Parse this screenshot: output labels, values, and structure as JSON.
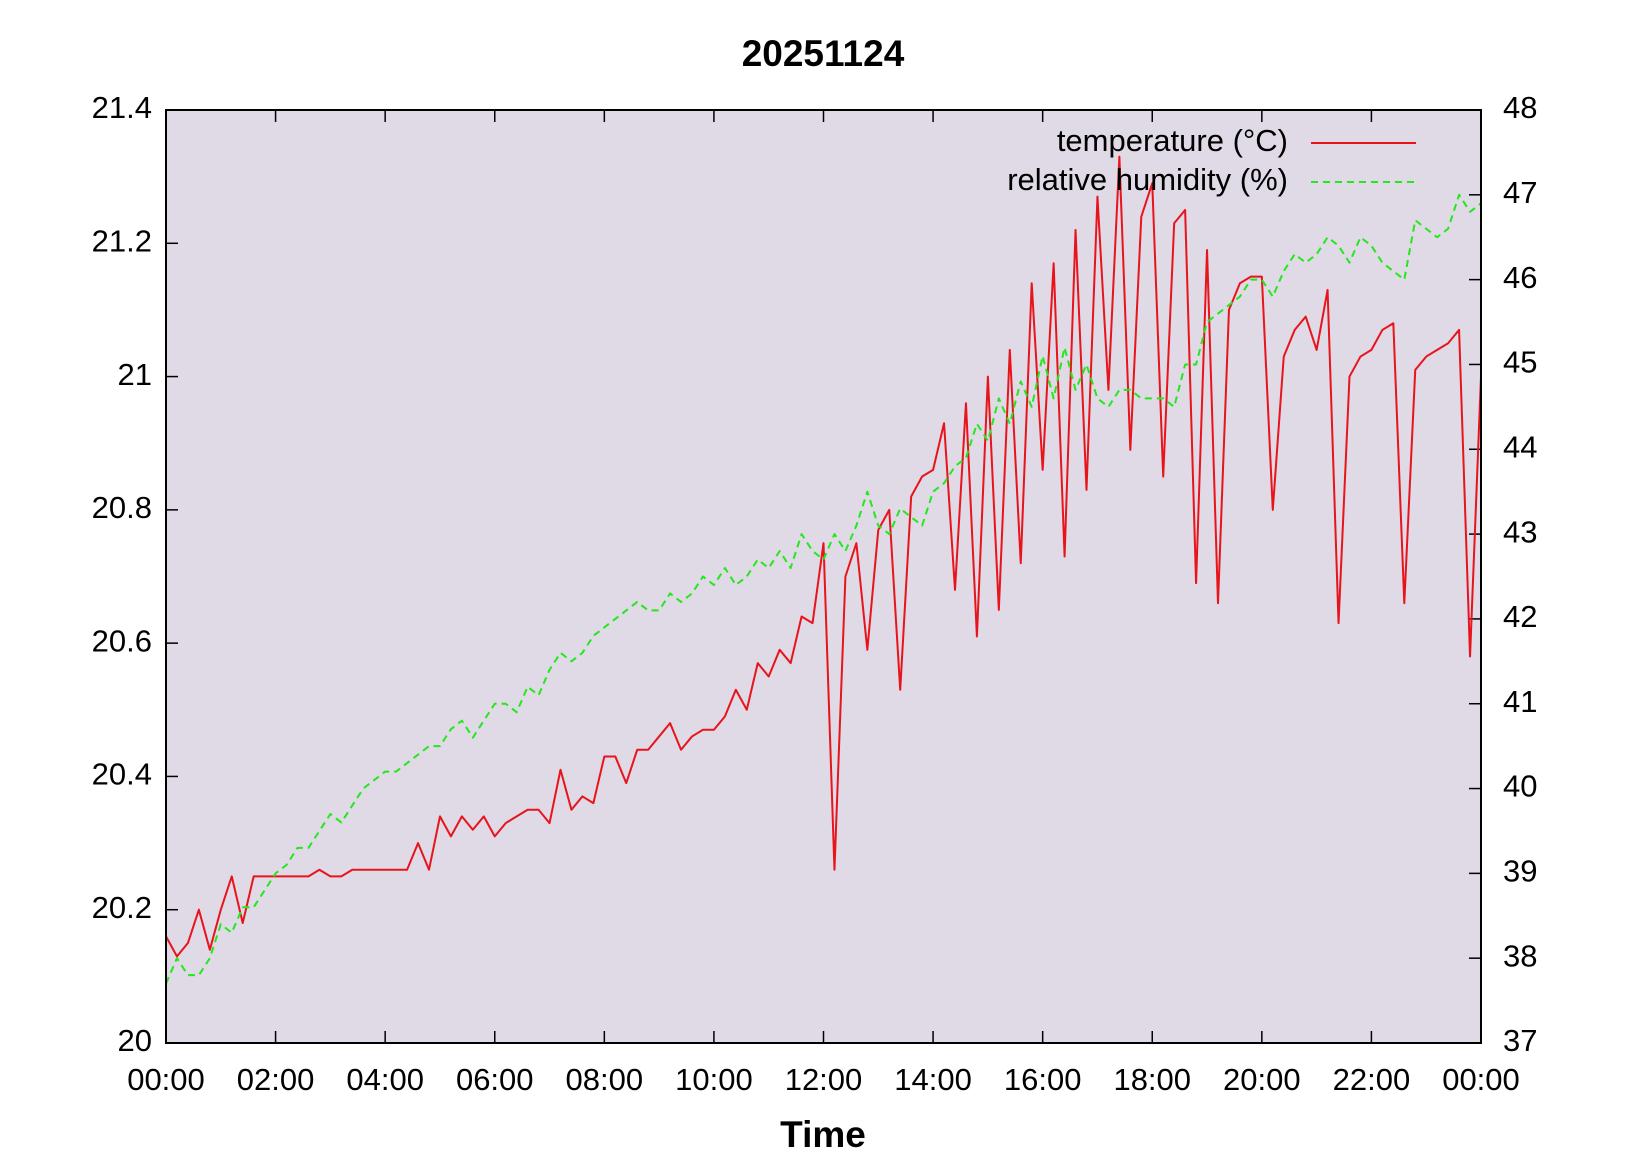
{
  "chart_data": {
    "type": "line",
    "title": "20251124",
    "xlabel": "Time",
    "x": [
      0,
      0.2,
      0.4,
      0.6,
      0.8,
      1,
      1.2,
      1.4,
      1.6,
      1.8,
      2,
      2.2,
      2.4,
      2.6,
      2.8,
      3,
      3.2,
      3.4,
      3.6,
      3.8,
      4,
      4.2,
      4.4,
      4.6,
      4.8,
      5,
      5.2,
      5.4,
      5.6,
      5.8,
      6,
      6.2,
      6.4,
      6.6,
      6.8,
      7,
      7.2,
      7.4,
      7.6,
      7.8,
      8,
      8.2,
      8.4,
      8.6,
      8.8,
      9,
      9.2,
      9.4,
      9.6,
      9.8,
      10,
      10.2,
      10.4,
      10.6,
      10.8,
      11,
      11.2,
      11.4,
      11.6,
      11.8,
      12,
      12.2,
      12.4,
      12.6,
      12.8,
      13,
      13.2,
      13.4,
      13.6,
      13.8,
      14,
      14.2,
      14.4,
      14.6,
      14.8,
      15,
      15.2,
      15.4,
      15.6,
      15.8,
      16,
      16.2,
      16.4,
      16.6,
      16.8,
      17,
      17.2,
      17.4,
      17.6,
      17.8,
      18,
      18.2,
      18.4,
      18.6,
      18.8,
      19,
      19.2,
      19.4,
      19.6,
      19.8,
      20,
      20.2,
      20.4,
      20.6,
      20.8,
      21,
      21.2,
      21.4,
      21.6,
      21.8,
      22,
      22.2,
      22.4,
      22.6,
      22.8,
      23,
      23.2,
      23.4,
      23.6,
      23.8,
      24
    ],
    "series": [
      {
        "name": "temperature (°C)",
        "color": "#e8141c",
        "style": "solid",
        "axis": "y",
        "values": [
          20.16,
          20.13,
          20.15,
          20.2,
          20.14,
          20.2,
          20.25,
          20.18,
          20.25,
          20.25,
          20.25,
          20.25,
          20.25,
          20.25,
          20.26,
          20.25,
          20.25,
          20.26,
          20.26,
          20.26,
          20.26,
          20.26,
          20.26,
          20.3,
          20.26,
          20.34,
          20.31,
          20.34,
          20.32,
          20.34,
          20.31,
          20.33,
          20.34,
          20.35,
          20.35,
          20.33,
          20.41,
          20.35,
          20.37,
          20.36,
          20.43,
          20.43,
          20.39,
          20.44,
          20.44,
          20.46,
          20.48,
          20.44,
          20.46,
          20.47,
          20.47,
          20.49,
          20.53,
          20.5,
          20.57,
          20.55,
          20.59,
          20.57,
          20.64,
          20.63,
          20.75,
          20.26,
          20.7,
          20.75,
          20.59,
          20.77,
          20.8,
          20.53,
          20.82,
          20.85,
          20.86,
          20.93,
          20.68,
          20.96,
          20.61,
          21.0,
          20.65,
          21.04,
          20.72,
          21.14,
          20.86,
          21.17,
          20.73,
          21.22,
          20.83,
          21.27,
          20.98,
          21.33,
          20.89,
          21.24,
          21.29,
          20.85,
          21.23,
          21.25,
          20.69,
          21.19,
          20.66,
          21.1,
          21.14,
          21.15,
          21.15,
          20.8,
          21.03,
          21.07,
          21.09,
          21.04,
          21.13,
          20.63,
          21.0,
          21.03,
          21.04,
          21.07,
          21.08,
          20.66,
          21.01,
          21.03,
          21.04,
          21.05,
          21.07,
          20.58,
          21.0
        ]
      },
      {
        "name": "relative humidity (%)",
        "color": "#22e81c",
        "style": "dashed",
        "axis": "y2",
        "values": [
          37.7,
          38.0,
          37.8,
          37.8,
          38.0,
          38.4,
          38.3,
          38.6,
          38.6,
          38.8,
          39.0,
          39.1,
          39.3,
          39.3,
          39.5,
          39.7,
          39.6,
          39.8,
          40.0,
          40.1,
          40.2,
          40.2,
          40.3,
          40.4,
          40.5,
          40.5,
          40.7,
          40.8,
          40.6,
          40.8,
          41.0,
          41.0,
          40.9,
          41.2,
          41.1,
          41.4,
          41.6,
          41.5,
          41.6,
          41.8,
          41.9,
          42.0,
          42.1,
          42.2,
          42.1,
          42.1,
          42.3,
          42.2,
          42.3,
          42.5,
          42.4,
          42.6,
          42.4,
          42.5,
          42.7,
          42.6,
          42.8,
          42.6,
          43.0,
          42.8,
          42.7,
          43.0,
          42.8,
          43.1,
          43.5,
          43.1,
          43.0,
          43.3,
          43.2,
          43.1,
          43.5,
          43.6,
          43.8,
          43.9,
          44.3,
          44.1,
          44.6,
          44.3,
          44.8,
          44.5,
          45.1,
          44.6,
          45.2,
          44.7,
          45.0,
          44.6,
          44.5,
          44.7,
          44.7,
          44.6,
          44.6,
          44.6,
          44.5,
          45.0,
          45.0,
          45.5,
          45.6,
          45.7,
          45.8,
          46.0,
          46.0,
          45.8,
          46.1,
          46.3,
          46.2,
          46.3,
          46.5,
          46.4,
          46.2,
          46.5,
          46.4,
          46.2,
          46.1,
          46.0,
          46.7,
          46.6,
          46.5,
          46.6,
          47.0,
          46.8,
          46.9
        ]
      }
    ],
    "xlim": [
      0,
      24
    ],
    "xticks": [
      {
        "value": 0,
        "label": "00:00"
      },
      {
        "value": 2,
        "label": "02:00"
      },
      {
        "value": 4,
        "label": "04:00"
      },
      {
        "value": 6,
        "label": "06:00"
      },
      {
        "value": 8,
        "label": "08:00"
      },
      {
        "value": 10,
        "label": "10:00"
      },
      {
        "value": 12,
        "label": "12:00"
      },
      {
        "value": 14,
        "label": "14:00"
      },
      {
        "value": 16,
        "label": "16:00"
      },
      {
        "value": 18,
        "label": "18:00"
      },
      {
        "value": 20,
        "label": "20:00"
      },
      {
        "value": 22,
        "label": "22:00"
      },
      {
        "value": 24,
        "label": "00:00"
      }
    ],
    "ylim": [
      20,
      21.4
    ],
    "yticks": [
      20,
      20.2,
      20.4,
      20.6,
      20.8,
      21,
      21.2,
      21.4
    ],
    "y2lim": [
      37,
      48
    ],
    "y2ticks": [
      37,
      38,
      39,
      40,
      41,
      42,
      43,
      44,
      45,
      46,
      47,
      48
    ],
    "legend": "upper right",
    "background": "#e0d9e6"
  }
}
